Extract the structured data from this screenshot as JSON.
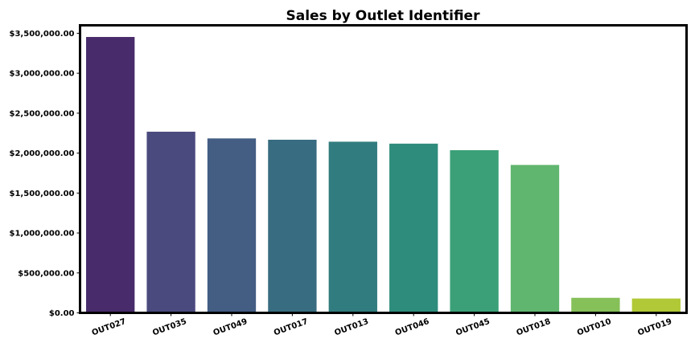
{
  "chart_data": {
    "type": "bar",
    "title": "Sales by Outlet Identifier",
    "xlabel": "",
    "ylabel": "",
    "categories": [
      "OUT027",
      "OUT035",
      "OUT049",
      "OUT017",
      "OUT013",
      "OUT046",
      "OUT045",
      "OUT018",
      "OUT010",
      "OUT019"
    ],
    "values": [
      3453926,
      2268123,
      2183970,
      2167465,
      2142664,
      2118395,
      2036725,
      1851823,
      188340,
      179694
    ],
    "colors": [
      "#482b6a",
      "#4a4a7e",
      "#435d83",
      "#386c80",
      "#317c7e",
      "#2e8c7c",
      "#3ba077",
      "#60b66f",
      "#86c059",
      "#b1c837"
    ],
    "ylim": [
      0,
      3600000
    ],
    "yticks": [
      0,
      500000,
      1000000,
      1500000,
      2000000,
      2500000,
      3000000,
      3500000
    ],
    "ytick_labels": [
      "$0.00",
      "$500,000.00",
      "$1,000,000.00",
      "$1,500,000.00",
      "$2,000,000.00",
      "$2,500,000.00",
      "$3,000,000.00",
      "$3,500,000.00"
    ],
    "grid": false,
    "legend": "none"
  }
}
